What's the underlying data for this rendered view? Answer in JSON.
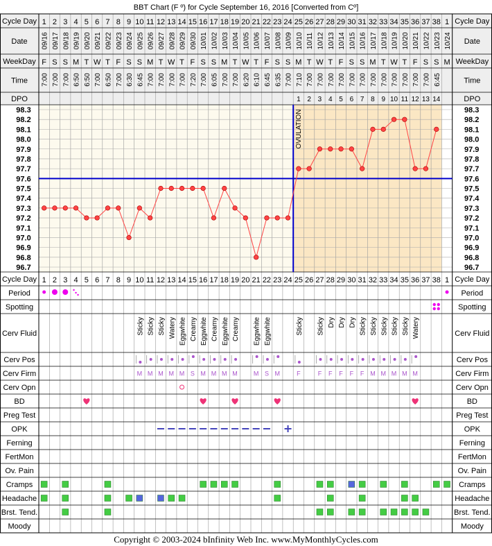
{
  "title": "BBT Chart (F º) for Cycle September 16, 2016  [Converted from Cº]",
  "footer": "Copyright © 2003-2024 bInfinity Web Inc.     www.MyMonthlyCycles.com",
  "ovulation_label": "OVULATION",
  "row_labels": {
    "cycle_day": "Cycle Day",
    "date": "Date",
    "weekday": "WeekDay",
    "time": "Time",
    "dpo": "DPO",
    "period": "Period",
    "spotting": "Spotting",
    "cerv_fluid": "Cerv Fluid",
    "cerv_pos": "Cerv Pos",
    "cerv_firm": "Cerv Firm",
    "cerv_opn": "Cerv Opn",
    "bd": "BD",
    "preg_test": "Preg Test",
    "opk": "OPK",
    "ferning": "Ferning",
    "fertmon": "FertMon",
    "ov_pain": "Ov. Pain",
    "cramps": "Cramps",
    "headache": "Headache",
    "brst_tend": "Brst. Tend.",
    "moody": "Moody"
  },
  "colors": {
    "temp_line": "#ff4444",
    "coverline": "#0000cc",
    "ovulation_line": "#0000cc",
    "luteal_fill": "#fbe7c4",
    "follicular_fill": "#fdfaee",
    "header_fill": "#eeeeee",
    "period": "#ee00ee",
    "bd_heart": "#ee3377",
    "symptom_green": "#44cc44",
    "symptom_blue": "#5566dd",
    "opk": "#4444bb",
    "mark": "#aa55cc"
  },
  "chart_data": {
    "type": "line",
    "title": "BBT Chart (F º) for Cycle September 16, 2016  [Converted from Cº]",
    "xlabel": "",
    "ylabel": "",
    "ylim": [
      96.7,
      98.3
    ],
    "y_ticks": [
      "98.3",
      "98.2",
      "98.1",
      "98.0",
      "97.9",
      "97.8",
      "97.7",
      "97.6",
      "97.5",
      "97.4",
      "97.3",
      "97.2",
      "97.1",
      "97.0",
      "96.9",
      "96.8",
      "96.7"
    ],
    "grid": true,
    "coverline": 97.6,
    "ovulation_after_day": 24,
    "cycle_days": [
      1,
      2,
      3,
      4,
      5,
      6,
      7,
      8,
      9,
      10,
      11,
      12,
      13,
      14,
      15,
      16,
      17,
      18,
      19,
      20,
      21,
      22,
      23,
      24,
      25,
      26,
      27,
      28,
      29,
      30,
      31,
      32,
      33,
      34,
      35,
      36,
      37,
      38,
      1
    ],
    "dates": [
      "09/16",
      "09/17",
      "09/18",
      "09/19",
      "09/20",
      "09/21",
      "09/22",
      "09/23",
      "09/24",
      "09/25",
      "09/26",
      "09/27",
      "09/28",
      "09/29",
      "09/30",
      "10/01",
      "10/02",
      "10/03",
      "10/04",
      "10/05",
      "10/06",
      "10/07",
      "10/08",
      "10/09",
      "10/10",
      "10/11",
      "10/12",
      "10/13",
      "10/14",
      "10/15",
      "10/16",
      "10/17",
      "10/18",
      "10/19",
      "10/20",
      "10/21",
      "10/22",
      "10/23",
      "10/24"
    ],
    "weekdays": [
      "F",
      "S",
      "S",
      "M",
      "T",
      "W",
      "T",
      "F",
      "S",
      "S",
      "M",
      "T",
      "W",
      "T",
      "F",
      "S",
      "S",
      "M",
      "T",
      "W",
      "T",
      "F",
      "S",
      "S",
      "M",
      "T",
      "W",
      "T",
      "F",
      "S",
      "S",
      "M",
      "T",
      "W",
      "T",
      "F",
      "S",
      "S",
      "M"
    ],
    "times": [
      "7:00",
      "7:00",
      "7:00",
      "6:50",
      "6:50",
      "7:00",
      "6:50",
      "7:00",
      "6:30",
      "6:45",
      "7:00",
      "7:00",
      "7:00",
      "7:00",
      "7:20",
      "7:00",
      "6:05",
      "7:00",
      "7:00",
      "6:20",
      "6:10",
      "6:45",
      "6:35",
      "7:00",
      "7:10",
      "7:00",
      "7:00",
      "7:00",
      "7:00",
      "7:00",
      "7:00",
      "7:00",
      "7:00",
      "7:00",
      "7:00",
      "7:00",
      "7:00",
      "6:45",
      ""
    ],
    "dpo": [
      "",
      "",
      "",
      "",
      "",
      "",
      "",
      "",
      "",
      "",
      "",
      "",
      "",
      "",
      "",
      "",
      "",
      "",
      "",
      "",
      "",
      "",
      "",
      "",
      "1",
      "2",
      "3",
      "4",
      "5",
      "6",
      "7",
      "8",
      "9",
      "10",
      "11",
      "12",
      "13",
      "14",
      ""
    ],
    "temperatures": [
      97.3,
      97.3,
      97.3,
      97.3,
      97.2,
      97.2,
      97.3,
      97.3,
      97.0,
      97.3,
      97.2,
      97.5,
      97.5,
      97.5,
      97.5,
      97.5,
      97.2,
      97.5,
      97.3,
      97.2,
      96.8,
      97.2,
      97.2,
      97.2,
      97.7,
      97.7,
      97.9,
      97.9,
      97.9,
      97.9,
      97.7,
      98.1,
      98.1,
      98.2,
      98.2,
      97.7,
      97.7,
      98.1,
      null
    ],
    "period": [
      "heavy",
      "heavy",
      "heavy",
      "light",
      "",
      "",
      "",
      "",
      "",
      "",
      "",
      "",
      "",
      "",
      "",
      "",
      "",
      "",
      "",
      "",
      "",
      "",
      "",
      "",
      "",
      "",
      "",
      "",
      "",
      "",
      "",
      "",
      "",
      "",
      "",
      "",
      "",
      "",
      "heavy"
    ],
    "spotting": [
      "",
      "",
      "",
      "",
      "",
      "",
      "",
      "",
      "",
      "",
      "",
      "",
      "",
      "",
      "",
      "",
      "",
      "",
      "",
      "",
      "",
      "",
      "",
      "",
      "",
      "",
      "",
      "",
      "",
      "",
      "",
      "",
      "",
      "",
      "",
      "",
      "",
      "spot",
      ""
    ],
    "cerv_fluid": [
      "",
      "",
      "",
      "",
      "",
      "",
      "",
      "",
      "",
      "Sticky",
      "Sticky",
      "Sticky",
      "Watery",
      "Eggwhite",
      "Creamy",
      "Eggwhite",
      "Creamy",
      "Eggwhite",
      "Creamy",
      "",
      "Eggwhite",
      "Eggwhite",
      "",
      "",
      "Sticky",
      "",
      "Sticky",
      "Dry",
      "Dry",
      "Dry",
      "Sticky",
      "Sticky",
      "Sticky",
      "Sticky",
      "Sticky",
      "Watery",
      "",
      "",
      ""
    ],
    "cerv_pos": [
      "",
      "",
      "",
      "",
      "",
      "",
      "",
      "",
      "",
      "low",
      "mid",
      "mid",
      "mid",
      "mid",
      "high",
      "mid",
      "mid",
      "mid",
      "mid",
      "",
      "high",
      "mid",
      "high",
      "",
      "low",
      "",
      "mid",
      "mid",
      "mid",
      "mid",
      "mid",
      "mid",
      "mid",
      "mid",
      "mid",
      "high",
      "",
      "",
      ""
    ],
    "cerv_firm": [
      "",
      "",
      "",
      "",
      "",
      "",
      "",
      "",
      "",
      "M",
      "M",
      "M",
      "M",
      "M",
      "S",
      "M",
      "M",
      "M",
      "M",
      "",
      "M",
      "S",
      "M",
      "",
      "F",
      "",
      "F",
      "F",
      "F",
      "F",
      "F",
      "M",
      "M",
      "M",
      "M",
      "M",
      "",
      "",
      ""
    ],
    "cerv_opn": [
      "",
      "",
      "",
      "",
      "",
      "",
      "",
      "",
      "",
      "",
      "",
      "",
      "",
      "o",
      "",
      "",
      "",
      "",
      "",
      "",
      "",
      "",
      "",
      "",
      "",
      "",
      "",
      "",
      "",
      "",
      "",
      "",
      "",
      "",
      "",
      "",
      "",
      "",
      ""
    ],
    "bd": [
      5,
      16,
      19,
      23,
      36
    ],
    "opk": [
      "",
      "",
      "",
      "",
      "",
      "",
      "",
      "",
      "",
      "",
      "",
      "neg",
      "neg",
      "neg",
      "neg",
      "neg",
      "neg",
      "neg",
      "neg",
      "neg",
      "neg",
      "neg",
      "",
      "pos",
      "",
      "",
      "",
      "",
      "",
      "",
      "",
      "",
      "",
      "",
      "",
      "",
      "",
      "",
      ""
    ],
    "cramps": [
      "g",
      "",
      "g",
      "",
      "",
      "",
      "g",
      "",
      "",
      "",
      "",
      "",
      "",
      "",
      "",
      "g",
      "g",
      "g",
      "g",
      "",
      "",
      "",
      "g",
      "",
      "",
      "",
      "g",
      "g",
      "",
      "b",
      "g",
      "",
      "g",
      "",
      "g",
      "",
      "",
      "g",
      "g"
    ],
    "headache": [
      "g",
      "",
      "g",
      "",
      "",
      "",
      "g",
      "",
      "g",
      "b",
      "",
      "b",
      "g",
      "g",
      "",
      "",
      "",
      "",
      "",
      "",
      "",
      "",
      "g",
      "",
      "",
      "",
      "",
      "g",
      "",
      "",
      "g",
      "",
      "",
      "",
      "g",
      "g",
      "",
      "",
      ""
    ],
    "brst_tend": [
      "",
      "",
      "g",
      "",
      "",
      "",
      "g",
      "",
      "",
      "",
      "",
      "",
      "",
      "",
      "",
      "",
      "",
      "",
      "",
      "",
      "",
      "",
      "",
      "",
      "",
      "",
      "g",
      "g",
      "",
      "g",
      "g",
      "",
      "g",
      "g",
      "g",
      "g",
      "g",
      "",
      ""
    ]
  }
}
